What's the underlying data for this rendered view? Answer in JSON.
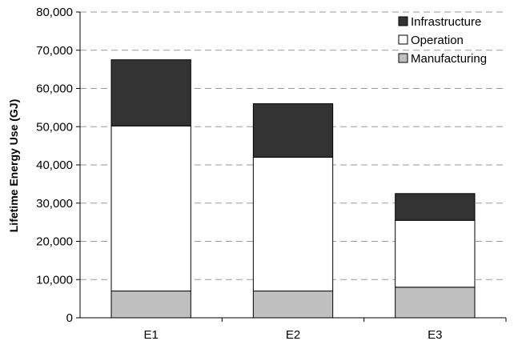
{
  "chart_data": {
    "type": "bar",
    "stacked": true,
    "title": "",
    "xlabel": "",
    "ylabel": "Lifetime Energy Use (GJ)",
    "ylim": [
      0,
      80000
    ],
    "yticks": [
      "0",
      "10,000",
      "20,000",
      "30,000",
      "40,000",
      "50,000",
      "60,000",
      "70,000",
      "80,000"
    ],
    "categories": [
      "E1",
      "E2",
      "E3"
    ],
    "grid": "horizontal dashed",
    "legend_position": "top-right",
    "series": [
      {
        "name": "Manufacturing",
        "color": "#c0c0c0",
        "values": [
          7000,
          7000,
          8000
        ]
      },
      {
        "name": "Operation",
        "color": "#ffffff",
        "values": [
          43200,
          35000,
          17500
        ]
      },
      {
        "name": "Infrastructure",
        "color": "#333333",
        "values": [
          17300,
          14000,
          7000
        ]
      }
    ],
    "legend_order": [
      "Infrastructure",
      "Operation",
      "Manufacturing"
    ]
  }
}
